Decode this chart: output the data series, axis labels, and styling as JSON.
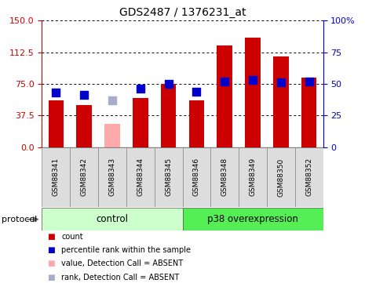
{
  "title": "GDS2487 / 1376231_at",
  "samples": [
    "GSM88341",
    "GSM88342",
    "GSM88343",
    "GSM88344",
    "GSM88345",
    "GSM88346",
    "GSM88348",
    "GSM88349",
    "GSM88350",
    "GSM88352"
  ],
  "bar_values": [
    55,
    50,
    27,
    58,
    75,
    55,
    120,
    130,
    107,
    82
  ],
  "bar_absent": [
    false,
    false,
    true,
    false,
    false,
    false,
    false,
    false,
    false,
    false
  ],
  "rank_values": [
    43,
    41,
    37,
    46,
    50,
    44,
    52,
    53,
    51,
    52
  ],
  "rank_absent": [
    false,
    false,
    true,
    false,
    false,
    false,
    false,
    false,
    false,
    false
  ],
  "ylim_left": [
    0,
    150
  ],
  "ylim_right": [
    0,
    100
  ],
  "yticks_left": [
    0,
    37.5,
    75,
    112.5,
    150
  ],
  "yticks_right": [
    0,
    25,
    50,
    75,
    100
  ],
  "bar_color_normal": "#cc0000",
  "bar_color_absent": "#ffaaaa",
  "rank_color_normal": "#0000cc",
  "rank_color_absent": "#aaaacc",
  "control_label": "control",
  "p38_label": "p38 overexpression",
  "protocol_label": "protocol",
  "legend_items": [
    {
      "label": "count",
      "color": "#cc0000"
    },
    {
      "label": "percentile rank within the sample",
      "color": "#0000cc"
    },
    {
      "label": "value, Detection Call = ABSENT",
      "color": "#ffaaaa"
    },
    {
      "label": "rank, Detection Call = ABSENT",
      "color": "#aaaacc"
    }
  ],
  "control_bg": "#ccffcc",
  "p38_bg": "#55ee55",
  "xlabel_bg": "#dddddd",
  "bar_width": 0.55,
  "rank_marker_size": 45
}
